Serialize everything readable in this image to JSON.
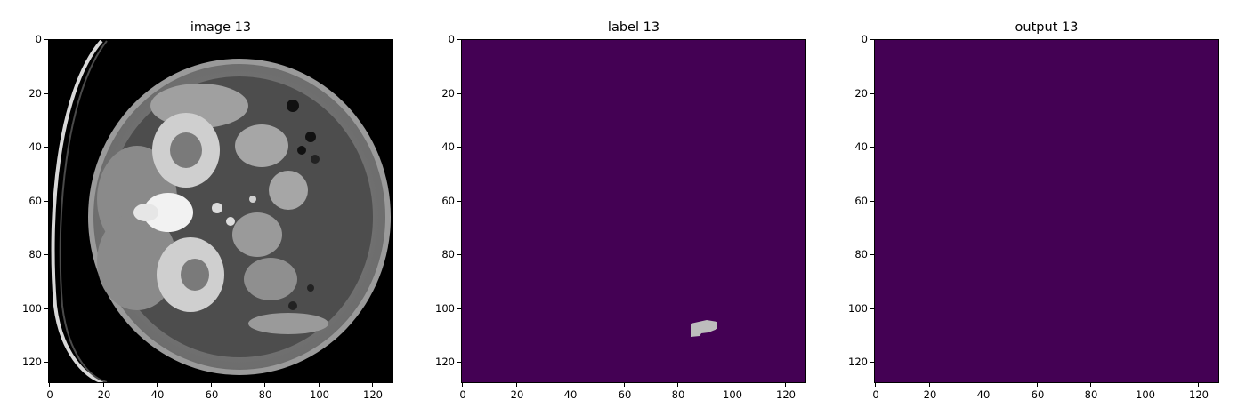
{
  "panels": [
    {
      "title": "image 13",
      "kind": "ct"
    },
    {
      "title": "label 13",
      "kind": "label"
    },
    {
      "title": "output 13",
      "kind": "output"
    }
  ],
  "axis": {
    "y_ticks": [
      "0",
      "20",
      "40",
      "60",
      "80",
      "100",
      "120"
    ],
    "x_ticks": [
      "0",
      "20",
      "40",
      "60",
      "80",
      "100",
      "120"
    ],
    "range": [
      0,
      128
    ]
  },
  "colors": {
    "label_background": "#440154",
    "label_region": "#bdbdbd",
    "ct_background": "#000000"
  },
  "label_region_extent": {
    "x": [
      85,
      95
    ],
    "y": [
      104,
      111
    ]
  }
}
